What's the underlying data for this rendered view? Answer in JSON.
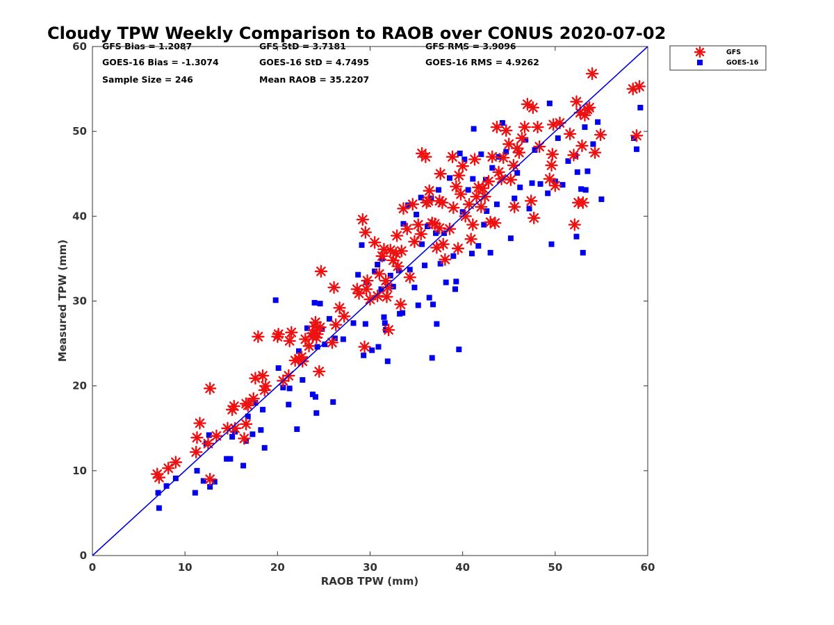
{
  "chart_data": {
    "type": "scatter",
    "title": "Cloudy TPW Weekly Comparison to RAOB over CONUS 2020-07-02",
    "xlabel": "RAOB TPW (mm)",
    "ylabel": "Measured TPW (mm)",
    "xlim": [
      0,
      60
    ],
    "ylim": [
      0,
      60
    ],
    "xticks": [
      "0",
      "10",
      "20",
      "30",
      "40",
      "50",
      "60"
    ],
    "yticks": [
      "0",
      "10",
      "20",
      "30",
      "40",
      "50",
      "60"
    ],
    "grid": false,
    "legend_position": "outside-top-right",
    "stats": [
      [
        "GFS Bias = 1.2087",
        "GFS StD = 3.7181",
        "GFS RMS = 3.9096"
      ],
      [
        "GOES-16 Bias = -1.3074",
        "GOES-16 StD = 4.7495",
        "GOES-16 RMS = 4.9262"
      ],
      [
        "Sample Size = 246",
        "Mean RAOB = 35.2207",
        ""
      ]
    ],
    "reference_line": {
      "x": [
        0,
        60
      ],
      "y": [
        0,
        60
      ],
      "color": "#0000dd"
    },
    "series": [
      {
        "name": "GFS",
        "marker": "asterisk",
        "color": "#ee1111",
        "points": [
          [
            7.0,
            9.6
          ],
          [
            7.2,
            9.2
          ],
          [
            8.2,
            10.3
          ],
          [
            9.0,
            11.0
          ],
          [
            11.2,
            12.2
          ],
          [
            11.3,
            13.9
          ],
          [
            11.6,
            15.6
          ],
          [
            12.5,
            13.2
          ],
          [
            12.7,
            19.7
          ],
          [
            12.7,
            9.0
          ],
          [
            13.4,
            14.1
          ],
          [
            14.6,
            15.0
          ],
          [
            15.1,
            17.2
          ],
          [
            15.3,
            17.6
          ],
          [
            15.4,
            15.0
          ],
          [
            16.4,
            13.8
          ],
          [
            16.6,
            15.5
          ],
          [
            16.6,
            17.9
          ],
          [
            16.8,
            17.7
          ],
          [
            17.4,
            18.5
          ],
          [
            17.6,
            20.9
          ],
          [
            17.9,
            25.8
          ],
          [
            18.4,
            21.2
          ],
          [
            18.6,
            19.5
          ],
          [
            18.7,
            20.0
          ],
          [
            20.0,
            25.8
          ],
          [
            20.1,
            26.1
          ],
          [
            20.6,
            20.6
          ],
          [
            21.2,
            21.2
          ],
          [
            21.3,
            25.3
          ],
          [
            21.5,
            26.3
          ],
          [
            21.9,
            23.0
          ],
          [
            22.3,
            23.2
          ],
          [
            22.6,
            23.4
          ],
          [
            22.7,
            22.9
          ],
          [
            23.0,
            25.5
          ],
          [
            23.4,
            24.7
          ],
          [
            23.8,
            25.8
          ],
          [
            23.8,
            26.2
          ],
          [
            24.0,
            27.0
          ],
          [
            24.1,
            27.5
          ],
          [
            24.2,
            25.7
          ],
          [
            24.3,
            26.1
          ],
          [
            24.5,
            21.7
          ],
          [
            24.6,
            26.9
          ],
          [
            24.7,
            33.5
          ],
          [
            25.9,
            25.1
          ],
          [
            26.1,
            31.6
          ],
          [
            26.3,
            27.2
          ],
          [
            26.7,
            29.2
          ],
          [
            27.2,
            28.2
          ],
          [
            28.6,
            31.4
          ],
          [
            28.8,
            30.9
          ],
          [
            29.2,
            39.6
          ],
          [
            29.4,
            24.6
          ],
          [
            29.5,
            38.1
          ],
          [
            29.6,
            31.4
          ],
          [
            29.7,
            32.4
          ],
          [
            30.0,
            30.2
          ],
          [
            30.5,
            36.9
          ],
          [
            30.8,
            30.6
          ],
          [
            31.0,
            33.2
          ],
          [
            31.3,
            35.3
          ],
          [
            31.5,
            36.1
          ],
          [
            31.7,
            32.4
          ],
          [
            31.8,
            30.5
          ],
          [
            31.9,
            31.6
          ],
          [
            32.0,
            26.6
          ],
          [
            32.2,
            36.0
          ],
          [
            32.5,
            34.8
          ],
          [
            32.8,
            35.6
          ],
          [
            32.9,
            37.7
          ],
          [
            33.0,
            34.1
          ],
          [
            33.3,
            29.6
          ],
          [
            33.4,
            35.9
          ],
          [
            33.6,
            40.9
          ],
          [
            34.0,
            38.5
          ],
          [
            34.3,
            32.8
          ],
          [
            34.6,
            41.4
          ],
          [
            34.8,
            37.0
          ],
          [
            35.2,
            39.0
          ],
          [
            35.5,
            37.9
          ],
          [
            35.6,
            47.4
          ],
          [
            36.0,
            47.0
          ],
          [
            36.1,
            41.6
          ],
          [
            36.3,
            41.8
          ],
          [
            36.4,
            43.0
          ],
          [
            36.7,
            39.2
          ],
          [
            37.0,
            39.1
          ],
          [
            37.2,
            36.3
          ],
          [
            37.5,
            38.6
          ],
          [
            37.5,
            41.8
          ],
          [
            37.6,
            45.0
          ],
          [
            37.8,
            41.6
          ],
          [
            37.9,
            36.7
          ],
          [
            38.1,
            34.9
          ],
          [
            38.6,
            38.5
          ],
          [
            38.9,
            47.0
          ],
          [
            39.0,
            41.0
          ],
          [
            39.3,
            43.5
          ],
          [
            39.5,
            36.2
          ],
          [
            39.6,
            44.8
          ],
          [
            39.8,
            42.6
          ],
          [
            40.0,
            45.9
          ],
          [
            40.3,
            40.0
          ],
          [
            40.7,
            41.4
          ],
          [
            40.9,
            37.3
          ],
          [
            41.1,
            39.0
          ],
          [
            41.3,
            46.7
          ],
          [
            41.5,
            42.3
          ],
          [
            41.7,
            43.4
          ],
          [
            42.0,
            41.1
          ],
          [
            42.2,
            43.3
          ],
          [
            42.4,
            42.3
          ],
          [
            42.8,
            44.1
          ],
          [
            43.0,
            39.3
          ],
          [
            43.2,
            47.0
          ],
          [
            43.5,
            39.2
          ],
          [
            43.7,
            50.5
          ],
          [
            43.9,
            45.2
          ],
          [
            44.2,
            44.4
          ],
          [
            44.4,
            46.9
          ],
          [
            44.7,
            50.1
          ],
          [
            45.0,
            48.5
          ],
          [
            45.2,
            44.3
          ],
          [
            45.5,
            46.0
          ],
          [
            45.6,
            41.1
          ],
          [
            45.9,
            48.0
          ],
          [
            46.1,
            47.5
          ],
          [
            46.4,
            49.2
          ],
          [
            46.7,
            50.5
          ],
          [
            47.0,
            53.2
          ],
          [
            47.4,
            41.8
          ],
          [
            47.6,
            52.8
          ],
          [
            47.7,
            39.8
          ],
          [
            48.1,
            50.5
          ],
          [
            48.3,
            48.2
          ],
          [
            49.4,
            44.4
          ],
          [
            49.6,
            46.0
          ],
          [
            49.7,
            47.3
          ],
          [
            49.8,
            50.8
          ],
          [
            50.0,
            43.6
          ],
          [
            50.5,
            51.0
          ],
          [
            51.6,
            49.7
          ],
          [
            52.0,
            47.2
          ],
          [
            52.1,
            39.0
          ],
          [
            52.3,
            53.5
          ],
          [
            52.5,
            41.6
          ],
          [
            52.7,
            52.2
          ],
          [
            52.9,
            48.3
          ],
          [
            53.0,
            41.6
          ],
          [
            53.2,
            51.9
          ],
          [
            53.5,
            52.6
          ],
          [
            53.7,
            52.8
          ],
          [
            54.0,
            56.8
          ],
          [
            54.3,
            47.5
          ],
          [
            54.9,
            49.6
          ],
          [
            58.4,
            55.0
          ],
          [
            58.8,
            49.5
          ],
          [
            59.1,
            55.3
          ]
        ]
      },
      {
        "name": "GOES-16",
        "marker": "square",
        "color": "#0000ee",
        "points": [
          [
            7.1,
            7.4
          ],
          [
            7.2,
            5.6
          ],
          [
            8.0,
            8.2
          ],
          [
            9.0,
            9.1
          ],
          [
            11.1,
            7.4
          ],
          [
            11.3,
            10.0
          ],
          [
            12.0,
            8.8
          ],
          [
            12.3,
            13.2
          ],
          [
            12.6,
            14.2
          ],
          [
            12.7,
            8.1
          ],
          [
            13.2,
            8.7
          ],
          [
            14.5,
            11.4
          ],
          [
            14.9,
            11.4
          ],
          [
            15.1,
            14.0
          ],
          [
            15.4,
            14.6
          ],
          [
            16.3,
            10.6
          ],
          [
            16.6,
            13.5
          ],
          [
            16.8,
            16.4
          ],
          [
            17.3,
            14.3
          ],
          [
            17.6,
            18.0
          ],
          [
            18.2,
            14.8
          ],
          [
            18.4,
            17.2
          ],
          [
            18.6,
            12.7
          ],
          [
            19.8,
            30.1
          ],
          [
            20.1,
            22.1
          ],
          [
            20.6,
            19.8
          ],
          [
            21.2,
            17.8
          ],
          [
            21.3,
            19.7
          ],
          [
            22.1,
            14.9
          ],
          [
            22.3,
            24.1
          ],
          [
            22.7,
            20.7
          ],
          [
            23.2,
            26.8
          ],
          [
            23.8,
            19.0
          ],
          [
            24.0,
            29.8
          ],
          [
            24.1,
            18.7
          ],
          [
            24.2,
            16.8
          ],
          [
            24.3,
            24.6
          ],
          [
            24.6,
            29.7
          ],
          [
            24.8,
            26.7
          ],
          [
            25.1,
            24.9
          ],
          [
            25.6,
            27.9
          ],
          [
            26.0,
            18.1
          ],
          [
            26.2,
            25.6
          ],
          [
            27.1,
            25.5
          ],
          [
            28.2,
            27.4
          ],
          [
            28.7,
            33.1
          ],
          [
            29.1,
            36.6
          ],
          [
            29.3,
            23.6
          ],
          [
            29.5,
            27.3
          ],
          [
            29.6,
            32.2
          ],
          [
            30.2,
            24.2
          ],
          [
            30.5,
            33.5
          ],
          [
            30.8,
            34.3
          ],
          [
            30.9,
            24.6
          ],
          [
            31.2,
            31.4
          ],
          [
            31.3,
            35.0
          ],
          [
            31.5,
            28.1
          ],
          [
            31.6,
            27.4
          ],
          [
            31.7,
            26.6
          ],
          [
            31.9,
            22.9
          ],
          [
            32.2,
            33.0
          ],
          [
            32.5,
            31.7
          ],
          [
            33.1,
            33.6
          ],
          [
            33.2,
            28.5
          ],
          [
            33.5,
            28.6
          ],
          [
            33.6,
            39.1
          ],
          [
            34.1,
            41.3
          ],
          [
            34.3,
            33.7
          ],
          [
            34.8,
            31.6
          ],
          [
            35.0,
            40.2
          ],
          [
            35.2,
            29.5
          ],
          [
            35.5,
            42.2
          ],
          [
            35.6,
            36.7
          ],
          [
            35.9,
            34.2
          ],
          [
            36.2,
            38.8
          ],
          [
            36.4,
            30.4
          ],
          [
            36.6,
            42.1
          ],
          [
            36.7,
            23.3
          ],
          [
            36.8,
            29.6
          ],
          [
            37.1,
            38.0
          ],
          [
            37.2,
            27.3
          ],
          [
            37.4,
            43.1
          ],
          [
            37.6,
            34.4
          ],
          [
            38.0,
            38.0
          ],
          [
            38.2,
            32.2
          ],
          [
            38.6,
            44.5
          ],
          [
            39.0,
            35.3
          ],
          [
            39.2,
            31.4
          ],
          [
            39.3,
            32.3
          ],
          [
            39.6,
            24.3
          ],
          [
            39.7,
            47.4
          ],
          [
            40.0,
            40.5
          ],
          [
            40.2,
            46.7
          ],
          [
            40.6,
            43.1
          ],
          [
            41.0,
            35.6
          ],
          [
            41.1,
            44.4
          ],
          [
            41.2,
            50.3
          ],
          [
            41.7,
            36.5
          ],
          [
            42.0,
            47.3
          ],
          [
            42.3,
            39.0
          ],
          [
            42.5,
            44.3
          ],
          [
            42.6,
            40.6
          ],
          [
            43.0,
            35.7
          ],
          [
            43.2,
            45.7
          ],
          [
            43.7,
            41.4
          ],
          [
            43.9,
            47.0
          ],
          [
            44.3,
            51.0
          ],
          [
            44.7,
            47.6
          ],
          [
            45.2,
            37.4
          ],
          [
            45.6,
            42.1
          ],
          [
            45.9,
            45.1
          ],
          [
            46.2,
            43.4
          ],
          [
            46.8,
            49.0
          ],
          [
            47.2,
            40.9
          ],
          [
            47.5,
            43.9
          ],
          [
            47.8,
            47.8
          ],
          [
            48.4,
            43.8
          ],
          [
            49.2,
            42.7
          ],
          [
            49.4,
            53.3
          ],
          [
            49.6,
            36.7
          ],
          [
            50.0,
            44.1
          ],
          [
            50.3,
            49.2
          ],
          [
            50.8,
            43.7
          ],
          [
            51.4,
            46.5
          ],
          [
            52.2,
            47.1
          ],
          [
            52.3,
            37.6
          ],
          [
            52.4,
            45.2
          ],
          [
            52.8,
            43.2
          ],
          [
            53.0,
            35.7
          ],
          [
            53.2,
            50.5
          ],
          [
            53.3,
            43.1
          ],
          [
            53.5,
            45.3
          ],
          [
            54.1,
            48.5
          ],
          [
            54.6,
            51.1
          ],
          [
            55.0,
            42.0
          ],
          [
            58.5,
            49.2
          ],
          [
            58.8,
            47.9
          ],
          [
            59.2,
            52.8
          ]
        ]
      }
    ]
  }
}
